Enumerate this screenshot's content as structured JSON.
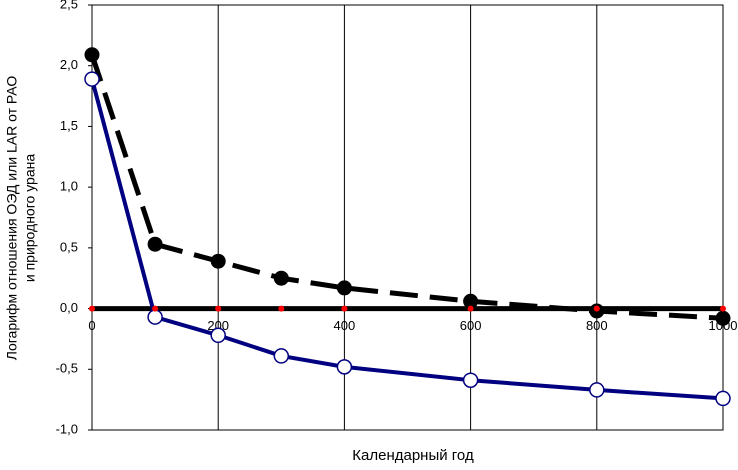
{
  "chart_data": {
    "type": "line",
    "xlabel": "Календарный год",
    "ylabel": [
      "Логарифм отношения ОЭД или LAR от РАО",
      "и природного урана"
    ],
    "x": [
      0,
      100,
      200,
      300,
      400,
      600,
      800,
      1000
    ],
    "series": [
      {
        "color": "#000000",
        "style": "dashed",
        "marker": "filled",
        "values": [
          2.09,
          0.53,
          0.39,
          0.25,
          0.17,
          0.06,
          -0.02,
          -0.08
        ]
      },
      {
        "color": "#000080",
        "style": "solid",
        "marker": "open",
        "values": [
          1.89,
          -0.07,
          -0.22,
          -0.39,
          -0.48,
          -0.59,
          -0.67,
          -0.74
        ]
      },
      {
        "color": "#ff0000",
        "style": "none",
        "marker": "dot",
        "values": [
          0,
          0,
          0,
          0,
          0,
          0,
          0,
          0
        ]
      }
    ],
    "xlim": [
      0,
      1000
    ],
    "xticks": [
      0,
      200,
      400,
      600,
      800,
      1000
    ],
    "ylim": [
      -1.0,
      2.5
    ],
    "yticks": [
      {
        "value": -1.0,
        "label": "-1,0"
      },
      {
        "value": -0.5,
        "label": "-0,5"
      },
      {
        "value": 0.0,
        "label": "0,0"
      },
      {
        "value": 0.5,
        "label": "0,5"
      },
      {
        "value": 1.0,
        "label": "1,0"
      },
      {
        "value": 1.5,
        "label": "1,5"
      },
      {
        "value": 2.0,
        "label": "2,0"
      },
      {
        "value": 2.5,
        "label": "2,5"
      }
    ],
    "grid_x": true
  }
}
